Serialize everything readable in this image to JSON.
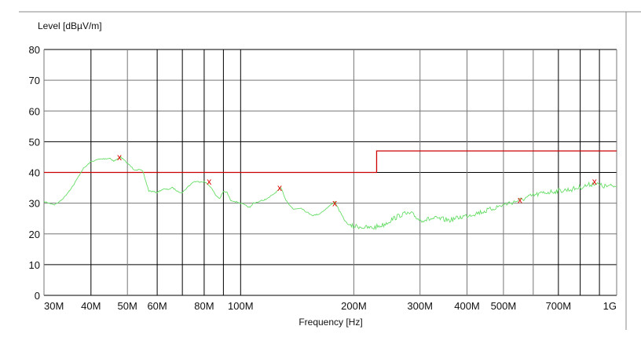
{
  "chart_data": {
    "type": "line",
    "ylabel": "Level [dBµV/m]",
    "xlabel": "Frequency [Hz]",
    "x_scale": "log",
    "xlim_hz": [
      30000000,
      1000000000
    ],
    "ylim": [
      0,
      80
    ],
    "grid": true,
    "y_ticks": [
      "0",
      "10",
      "20",
      "30",
      "40",
      "50",
      "60",
      "70",
      "80"
    ],
    "x_ticks": [
      {
        "f": 30,
        "label": "30M"
      },
      {
        "f": 40,
        "label": "40M"
      },
      {
        "f": 50,
        "label": "50M"
      },
      {
        "f": 60,
        "label": "60M"
      },
      {
        "f": 80,
        "label": "80M"
      },
      {
        "f": 100,
        "label": "100M"
      },
      {
        "f": 200,
        "label": "200M"
      },
      {
        "f": 300,
        "label": "300M"
      },
      {
        "f": 400,
        "label": "400M"
      },
      {
        "f": 500,
        "label": "500M"
      },
      {
        "f": 700,
        "label": "700M"
      },
      {
        "f": 1000,
        "label": "1G"
      }
    ],
    "x_unit": "MHz",
    "gridlines_x_mhz": [
      40,
      50,
      60,
      70,
      80,
      90,
      100,
      200,
      300,
      400,
      500,
      600,
      700,
      800,
      900
    ],
    "colors": {
      "trace": "#66dd66",
      "limit": "#cc0000",
      "marker": "#e00000",
      "grid_major": "#000000",
      "grid_minor": "#777777"
    },
    "limit_line": [
      [
        30,
        40
      ],
      [
        230,
        40
      ],
      [
        230,
        47
      ],
      [
        1000,
        47
      ]
    ],
    "series": [
      {
        "type": "trace",
        "points": [
          [
            30,
            30.5
          ],
          [
            31,
            30
          ],
          [
            32,
            29.5
          ],
          [
            33,
            30.5
          ],
          [
            34,
            32
          ],
          [
            36,
            36
          ],
          [
            38,
            41
          ],
          [
            40,
            43.5
          ],
          [
            42,
            44.3
          ],
          [
            44,
            44.5
          ],
          [
            45,
            44.6
          ],
          [
            46,
            43.7
          ],
          [
            47,
            44.3
          ],
          [
            48,
            45
          ],
          [
            50,
            43
          ],
          [
            52,
            41
          ],
          [
            54,
            40.8
          ],
          [
            55,
            40.3
          ],
          [
            56,
            37
          ],
          [
            57,
            34
          ],
          [
            60,
            33.5
          ],
          [
            62,
            34.5
          ],
          [
            64,
            34.5
          ],
          [
            66,
            35
          ],
          [
            68,
            33.8
          ],
          [
            70,
            33.5
          ],
          [
            72,
            35
          ],
          [
            75,
            37
          ],
          [
            78,
            37
          ],
          [
            80,
            37
          ],
          [
            83,
            35.5
          ],
          [
            86,
            32.5
          ],
          [
            88,
            31.5
          ],
          [
            90,
            33.8
          ],
          [
            92,
            33.5
          ],
          [
            94,
            31
          ],
          [
            97,
            30.5
          ],
          [
            100,
            30
          ],
          [
            104,
            29
          ],
          [
            106,
            28.5
          ],
          [
            108,
            30
          ],
          [
            112,
            30.5
          ],
          [
            118,
            31.5
          ],
          [
            124,
            33.5
          ],
          [
            128,
            35
          ],
          [
            132,
            31
          ],
          [
            138,
            28
          ],
          [
            145,
            28.5
          ],
          [
            150,
            27
          ],
          [
            156,
            26
          ],
          [
            162,
            26.5
          ],
          [
            170,
            28.5
          ],
          [
            178,
            30.5
          ],
          [
            184,
            27
          ],
          [
            190,
            24
          ],
          [
            196,
            22.5
          ],
          [
            205,
            22.5
          ],
          [
            215,
            22
          ],
          [
            225,
            22
          ],
          [
            240,
            23
          ],
          [
            255,
            25
          ],
          [
            270,
            26.5
          ],
          [
            285,
            26.5
          ],
          [
            300,
            24.5
          ],
          [
            330,
            25
          ],
          [
            360,
            24.5
          ],
          [
            400,
            26
          ],
          [
            450,
            27.5
          ],
          [
            500,
            29.5
          ],
          [
            553,
            31
          ],
          [
            600,
            32.5
          ],
          [
            650,
            33.5
          ],
          [
            700,
            34
          ],
          [
            760,
            34.5
          ],
          [
            820,
            35.5
          ],
          [
            873,
            36.5
          ],
          [
            920,
            35.5
          ],
          [
            1000,
            35.5
          ]
        ]
      }
    ],
    "markers": [
      {
        "f": 47.6,
        "level": 45,
        "symbol": "x"
      },
      {
        "f": 82.5,
        "level": 37,
        "symbol": "x"
      },
      {
        "f": 127,
        "level": 35,
        "symbol": "x"
      },
      {
        "f": 178,
        "level": 30,
        "symbol": "x"
      },
      {
        "f": 553,
        "level": 31,
        "symbol": "x"
      },
      {
        "f": 873,
        "level": 37,
        "symbol": "x"
      }
    ]
  }
}
